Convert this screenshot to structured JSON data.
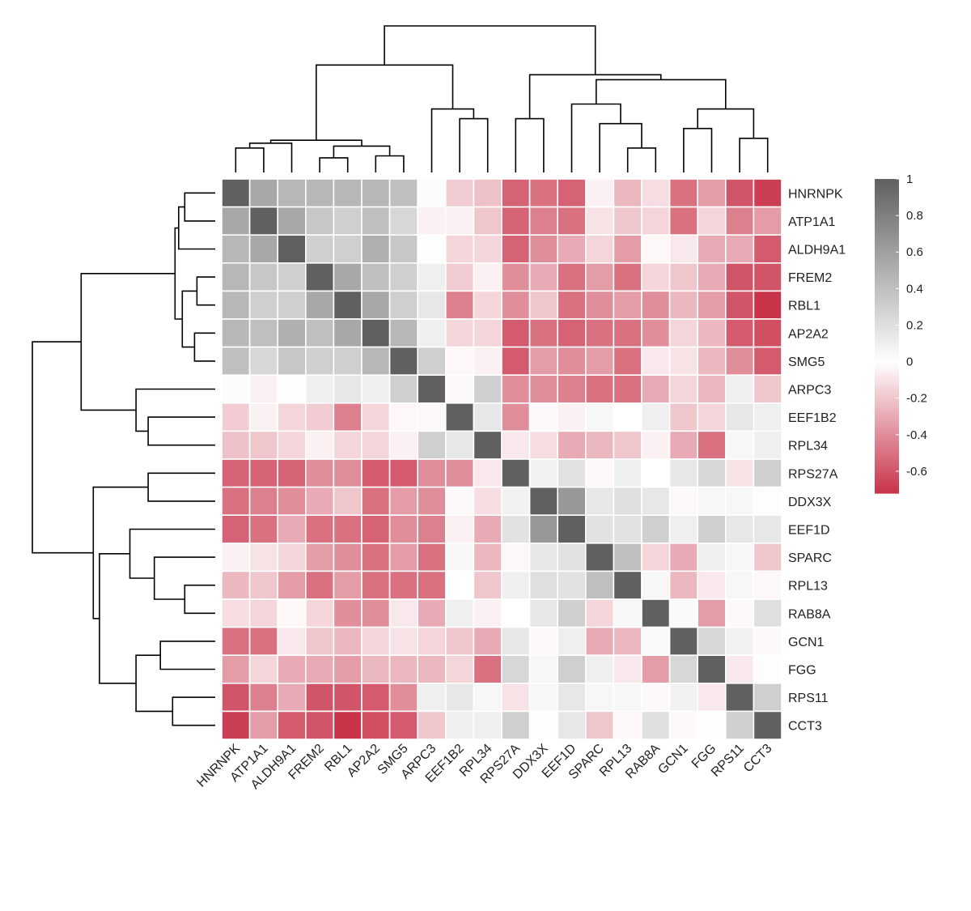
{
  "chart_data": {
    "type": "heatmap",
    "title": "",
    "xlabel": "",
    "ylabel": "",
    "labels": [
      "HNRNPK",
      "ATP1A1",
      "ALDH9A1",
      "FREM2",
      "RBL1",
      "AP2A2",
      "SMG5",
      "ARPC3",
      "EEF1B2",
      "RPL34",
      "RPS27A",
      "DDX3X",
      "EEF1D",
      "SPARC",
      "RPL13",
      "RAB8A",
      "GCN1",
      "FGG",
      "RPS11",
      "CCT3"
    ],
    "values": [
      [
        1.0,
        0.55,
        0.45,
        0.45,
        0.45,
        0.45,
        0.4,
        0.02,
        -0.18,
        -0.22,
        -0.55,
        -0.5,
        -0.55,
        -0.05,
        -0.25,
        -0.12,
        -0.5,
        -0.35,
        -0.6,
        -0.68
      ],
      [
        0.55,
        1.0,
        0.55,
        0.35,
        0.3,
        0.4,
        0.25,
        -0.05,
        -0.05,
        -0.2,
        -0.55,
        -0.45,
        -0.5,
        -0.1,
        -0.2,
        -0.15,
        -0.5,
        -0.15,
        -0.45,
        -0.35
      ],
      [
        0.45,
        0.55,
        1.0,
        0.3,
        0.3,
        0.5,
        0.35,
        0.01,
        -0.15,
        -0.15,
        -0.55,
        -0.4,
        -0.3,
        -0.15,
        -0.35,
        -0.03,
        -0.08,
        -0.3,
        -0.3,
        -0.58
      ],
      [
        0.45,
        0.35,
        0.3,
        1.0,
        0.55,
        0.4,
        0.3,
        0.1,
        -0.18,
        -0.05,
        -0.4,
        -0.3,
        -0.5,
        -0.35,
        -0.5,
        -0.15,
        -0.2,
        -0.3,
        -0.6,
        -0.6
      ],
      [
        0.45,
        0.3,
        0.3,
        0.55,
        1.0,
        0.55,
        0.3,
        0.15,
        -0.45,
        -0.15,
        -0.4,
        -0.2,
        -0.5,
        -0.4,
        -0.35,
        -0.4,
        -0.25,
        -0.35,
        -0.6,
        -0.72
      ],
      [
        0.45,
        0.4,
        0.5,
        0.4,
        0.55,
        1.0,
        0.45,
        0.1,
        -0.15,
        -0.15,
        -0.58,
        -0.5,
        -0.55,
        -0.5,
        -0.5,
        -0.4,
        -0.15,
        -0.25,
        -0.58,
        -0.62
      ],
      [
        0.4,
        0.25,
        0.35,
        0.3,
        0.3,
        0.45,
        1.0,
        0.3,
        -0.03,
        -0.05,
        -0.58,
        -0.35,
        -0.4,
        -0.35,
        -0.5,
        -0.08,
        -0.1,
        -0.25,
        -0.4,
        -0.58
      ],
      [
        0.02,
        -0.05,
        0.01,
        0.1,
        0.15,
        0.1,
        0.3,
        1.0,
        -0.02,
        0.3,
        -0.4,
        -0.4,
        -0.45,
        -0.5,
        -0.5,
        -0.3,
        -0.15,
        -0.25,
        0.1,
        -0.2
      ],
      [
        -0.18,
        -0.05,
        -0.15,
        -0.18,
        -0.45,
        -0.15,
        -0.03,
        -0.02,
        1.0,
        0.15,
        -0.4,
        -0.02,
        -0.05,
        0.05,
        0.0,
        0.1,
        -0.2,
        -0.15,
        0.15,
        0.1
      ],
      [
        -0.22,
        -0.2,
        -0.15,
        -0.05,
        -0.15,
        -0.15,
        -0.05,
        0.3,
        0.15,
        1.0,
        -0.08,
        -0.12,
        -0.3,
        -0.25,
        -0.2,
        -0.05,
        -0.3,
        -0.5,
        0.05,
        0.1
      ],
      [
        -0.55,
        -0.55,
        -0.55,
        -0.4,
        -0.4,
        -0.58,
        -0.58,
        -0.4,
        -0.4,
        -0.08,
        1.0,
        0.08,
        0.18,
        -0.03,
        0.1,
        0.0,
        0.15,
        0.25,
        -0.1,
        0.3
      ],
      [
        -0.5,
        -0.45,
        -0.4,
        -0.3,
        -0.2,
        -0.5,
        -0.35,
        -0.4,
        -0.02,
        -0.12,
        0.08,
        1.0,
        0.65,
        0.15,
        0.2,
        0.15,
        -0.02,
        0.05,
        0.05,
        -0.01
      ],
      [
        -0.55,
        -0.5,
        -0.3,
        -0.5,
        -0.5,
        -0.55,
        -0.4,
        -0.45,
        -0.05,
        -0.3,
        0.18,
        0.65,
        1.0,
        0.18,
        0.18,
        0.3,
        0.1,
        0.3,
        0.15,
        0.15
      ],
      [
        -0.05,
        -0.1,
        -0.15,
        -0.35,
        -0.4,
        -0.5,
        -0.35,
        -0.5,
        0.05,
        -0.25,
        -0.03,
        0.15,
        0.18,
        1.0,
        0.4,
        -0.15,
        -0.3,
        0.1,
        0.05,
        -0.2
      ],
      [
        -0.25,
        -0.2,
        -0.35,
        -0.5,
        -0.35,
        -0.5,
        -0.5,
        -0.5,
        0.0,
        -0.2,
        0.1,
        0.2,
        0.18,
        0.4,
        1.0,
        0.05,
        -0.25,
        -0.08,
        0.05,
        -0.03
      ],
      [
        -0.12,
        -0.15,
        -0.03,
        -0.15,
        -0.4,
        -0.4,
        -0.08,
        -0.3,
        0.1,
        -0.05,
        0.0,
        0.15,
        0.3,
        -0.15,
        0.05,
        1.0,
        0.03,
        -0.35,
        -0.02,
        0.2
      ],
      [
        -0.5,
        -0.5,
        -0.08,
        -0.2,
        -0.25,
        -0.15,
        -0.1,
        -0.15,
        -0.2,
        -0.3,
        0.15,
        -0.02,
        0.1,
        -0.3,
        -0.25,
        0.03,
        1.0,
        0.25,
        0.08,
        -0.02
      ],
      [
        -0.35,
        -0.15,
        -0.3,
        -0.3,
        -0.35,
        -0.25,
        -0.25,
        -0.25,
        -0.15,
        -0.5,
        0.25,
        0.05,
        0.3,
        0.1,
        -0.08,
        -0.35,
        0.25,
        1.0,
        -0.08,
        0.01
      ],
      [
        -0.6,
        -0.45,
        -0.3,
        -0.6,
        -0.6,
        -0.58,
        -0.4,
        0.1,
        0.15,
        0.05,
        -0.1,
        0.05,
        0.15,
        0.05,
        0.05,
        -0.02,
        0.08,
        -0.08,
        1.0,
        0.3
      ],
      [
        -0.68,
        -0.35,
        -0.58,
        -0.6,
        -0.72,
        -0.62,
        -0.58,
        -0.2,
        0.1,
        0.1,
        0.3,
        -0.01,
        0.15,
        -0.2,
        -0.03,
        0.2,
        -0.02,
        0.01,
        0.3,
        1.0
      ]
    ],
    "colorbar": {
      "range": [
        -0.72,
        1
      ],
      "ticks": [
        1,
        0.8,
        0.6,
        0.4,
        0.2,
        0,
        -0.2,
        -0.4,
        -0.6
      ],
      "tick_labels": [
        "1",
        "0.8",
        "0.6",
        "0.4",
        "0.2",
        "0",
        "-0.2",
        "-0.4",
        "-0.6"
      ],
      "low_color": "#c8334a",
      "mid_color": "#ffffff",
      "high_color": "#606060"
    },
    "dendrogram_merges": [
      [
        0,
        1,
        0.25
      ],
      [
        20,
        2,
        0.3
      ],
      [
        3,
        4,
        0.15
      ],
      [
        5,
        6,
        0.17
      ],
      [
        22,
        23,
        0.27
      ],
      [
        21,
        24,
        0.33
      ],
      [
        8,
        9,
        0.55
      ],
      [
        7,
        26,
        0.65
      ],
      [
        25,
        27,
        1.1
      ],
      [
        14,
        15,
        0.25
      ],
      [
        13,
        29,
        0.5
      ],
      [
        12,
        30,
        0.7
      ],
      [
        16,
        17,
        0.45
      ],
      [
        18,
        19,
        0.35
      ],
      [
        32,
        33,
        0.65
      ],
      [
        31,
        34,
        0.95
      ],
      [
        10,
        11,
        0.55
      ],
      [
        36,
        35,
        1.0
      ],
      [
        28,
        37,
        1.5
      ]
    ]
  }
}
